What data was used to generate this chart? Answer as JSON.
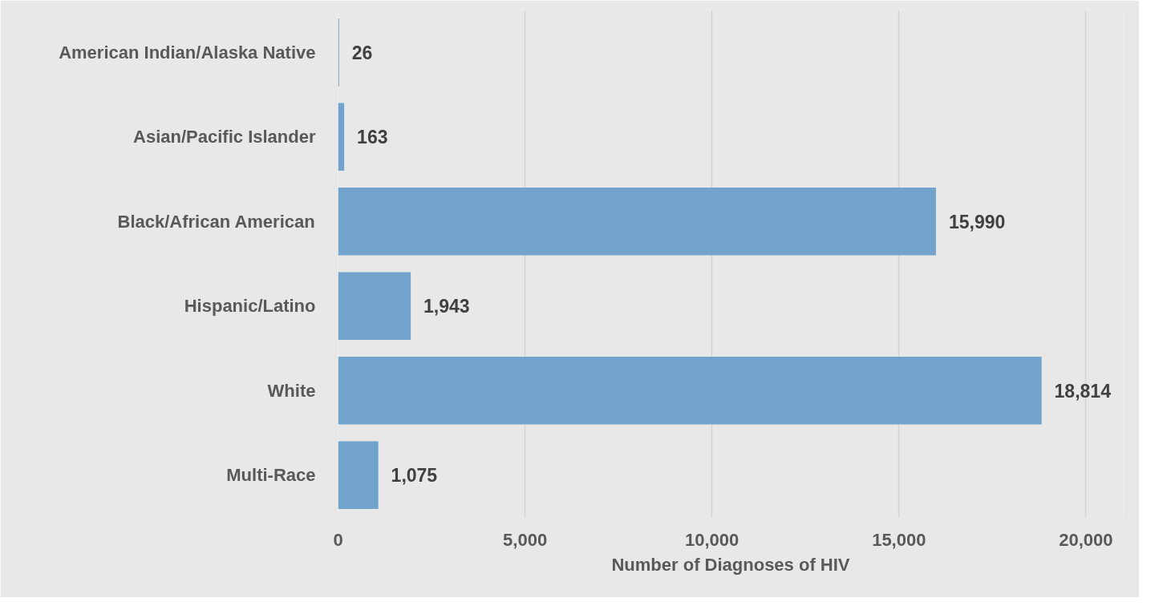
{
  "chart_data": {
    "type": "bar",
    "orientation": "horizontal",
    "xlabel": "Number of Diagnoses of HIV",
    "categories": [
      "American Indian/Alaska Native",
      "Asian/Pacific Islander",
      "Black/African American",
      "Hispanic/Latino",
      "White",
      "Multi-Race"
    ],
    "values": [
      26,
      163,
      15990,
      1943,
      18814,
      1075
    ],
    "value_labels": [
      "26",
      "163",
      "15,990",
      "1,943",
      "18,814",
      "1,075"
    ],
    "color": "#71a3cc",
    "xlim": [
      0,
      21000
    ],
    "xticks": [
      {
        "value": 0,
        "label": "0"
      },
      {
        "value": 5000,
        "label": "5,000"
      },
      {
        "value": 10000,
        "label": "10,000"
      },
      {
        "value": 15000,
        "label": "15,000"
      },
      {
        "value": 20000,
        "label": "20,000"
      }
    ],
    "grid": "x"
  }
}
